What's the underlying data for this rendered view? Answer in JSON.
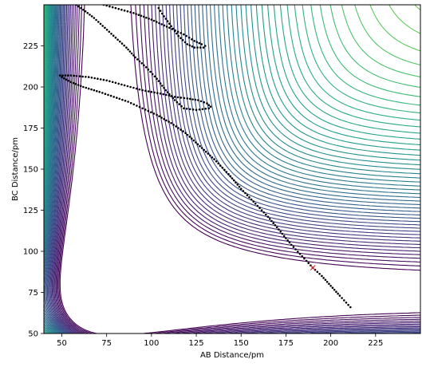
{
  "chart_data": {
    "type": "contour",
    "title": "",
    "xlabel": "AB Distance/pm",
    "ylabel": "BC Distance/pm",
    "xlim": [
      40,
      250
    ],
    "ylim": [
      50,
      250
    ],
    "xticks": [
      50,
      75,
      100,
      125,
      150,
      175,
      200,
      225
    ],
    "yticks": [
      50,
      75,
      100,
      125,
      150,
      175,
      200,
      225
    ],
    "grid": false,
    "legend": "none",
    "colormap": "viridis",
    "contour_levels": 60,
    "series": [
      {
        "type": "scatter",
        "marker": "dot",
        "color": "#000000",
        "points": [
          [
            211,
            66
          ],
          [
            205,
            73
          ],
          [
            200,
            79
          ],
          [
            195,
            85
          ],
          [
            190,
            90
          ],
          [
            184,
            97
          ],
          [
            178,
            104
          ],
          [
            172,
            112
          ],
          [
            165,
            121
          ],
          [
            158,
            129
          ],
          [
            150,
            138
          ],
          [
            143,
            147
          ],
          [
            135,
            156
          ],
          [
            127,
            164
          ],
          [
            119,
            172
          ],
          [
            111,
            178
          ],
          [
            103,
            183
          ],
          [
            95,
            187
          ],
          [
            87,
            191
          ],
          [
            79,
            194
          ],
          [
            71,
            197
          ],
          [
            62,
            200
          ],
          [
            55,
            203
          ],
          [
            50,
            206
          ],
          [
            49,
            207
          ],
          [
            55,
            207
          ],
          [
            65,
            206
          ],
          [
            75,
            204
          ],
          [
            85,
            201
          ],
          [
            95,
            198
          ],
          [
            105,
            196
          ],
          [
            113,
            194
          ],
          [
            120,
            193
          ],
          [
            126,
            192
          ],
          [
            131,
            190
          ],
          [
            133,
            188
          ],
          [
            132,
            187
          ],
          [
            125,
            186
          ],
          [
            118,
            187
          ],
          [
            113,
            192
          ],
          [
            108,
            198
          ],
          [
            103,
            205
          ],
          [
            97,
            212
          ],
          [
            91,
            218
          ],
          [
            86,
            224
          ],
          [
            80,
            230
          ],
          [
            74,
            236
          ],
          [
            68,
            242
          ],
          [
            62,
            247
          ],
          [
            58,
            250
          ],
          [
            60,
            252
          ],
          [
            70,
            251
          ],
          [
            80,
            248
          ],
          [
            90,
            245
          ],
          [
            100,
            241
          ],
          [
            110,
            236
          ],
          [
            118,
            232
          ],
          [
            124,
            228
          ],
          [
            128,
            226
          ],
          [
            130,
            225
          ],
          [
            129,
            224
          ],
          [
            124,
            224
          ],
          [
            120,
            226
          ],
          [
            115,
            231
          ],
          [
            111,
            237
          ],
          [
            107,
            243
          ],
          [
            104,
            248
          ]
        ]
      },
      {
        "type": "marker",
        "marker": "x",
        "color": "#d62728",
        "points": [
          [
            190,
            90
          ]
        ]
      }
    ]
  }
}
